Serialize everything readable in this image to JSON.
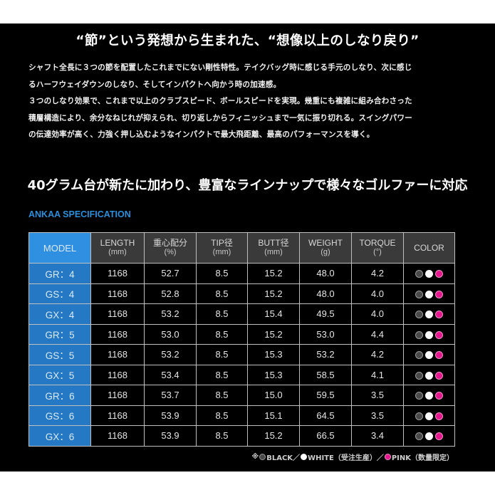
{
  "headline": "“節”という発想から生まれた、“想像以上のしなり戻り”",
  "intro_lines": [
    "シャフト全長に３つの節を配置したこれまでにない剛性特性。テイクバッグ時に感じる手元のしなり、次に感じ",
    "るハーフウェイダウンのしなり、そしてインパクトへ向かう時の加速感。",
    "３つのしなり効果で、これまで以上のクラブスピード、ボールスピードを実現。幾重にも複雑に組み合わさった",
    "積層構造により、余分なねじれが抑えられ、切り返しからフィニッシュまで一気に振り切れる。スイングパワー",
    "の伝達効率が高く、力強く押し込むようなインパクトで最大飛距離、最高のパフォーマンスを導く。"
  ],
  "subhead": "40グラム台が新たに加わり、豊富なラインナップで様々なゴルファーに対応",
  "spec_title": "ANKAA SPECIFICATION",
  "table": {
    "headers": [
      {
        "label": "MODEL",
        "unit": ""
      },
      {
        "label": "LENGTH",
        "unit": "(mm)"
      },
      {
        "label": "重心配分",
        "unit": "(%)"
      },
      {
        "label": "TIP径",
        "unit": "(mm)"
      },
      {
        "label": "BUTT径",
        "unit": "(mm)"
      },
      {
        "label": "WEIGHT",
        "unit": "(g)"
      },
      {
        "label": "TORQUE",
        "unit": "(°)"
      },
      {
        "label": "COLOR",
        "unit": ""
      }
    ],
    "rows": [
      {
        "model": "GR：4",
        "length": "1168",
        "balance": "52.7",
        "tip": "8.5",
        "butt": "15.2",
        "weight": "48.0",
        "torque": "4.2"
      },
      {
        "model": "GS：4",
        "length": "1168",
        "balance": "52.8",
        "tip": "8.5",
        "butt": "15.2",
        "weight": "48.0",
        "torque": "4.0"
      },
      {
        "model": "GX：4",
        "length": "1168",
        "balance": "53.2",
        "tip": "8.5",
        "butt": "15.4",
        "weight": "49.5",
        "torque": "4.0"
      },
      {
        "model": "GR：5",
        "length": "1168",
        "balance": "53.0",
        "tip": "8.5",
        "butt": "15.2",
        "weight": "53.0",
        "torque": "4.4"
      },
      {
        "model": "GS：5",
        "length": "1168",
        "balance": "53.2",
        "tip": "8.5",
        "butt": "15.3",
        "weight": "53.2",
        "torque": "4.2"
      },
      {
        "model": "GX：5",
        "length": "1168",
        "balance": "53.4",
        "tip": "8.5",
        "butt": "15.3",
        "weight": "58.5",
        "torque": "4.1"
      },
      {
        "model": "GR：6",
        "length": "1168",
        "balance": "53.7",
        "tip": "8.5",
        "butt": "15.0",
        "weight": "59.5",
        "torque": "3.5"
      },
      {
        "model": "GS：6",
        "length": "1168",
        "balance": "53.9",
        "tip": "8.5",
        "butt": "15.1",
        "weight": "64.5",
        "torque": "3.5"
      },
      {
        "model": "GX：6",
        "length": "1168",
        "balance": "53.9",
        "tip": "8.5",
        "butt": "15.2",
        "weight": "66.5",
        "torque": "3.4"
      }
    ],
    "colors": {
      "black": "#4a4a4a",
      "white": "#ffffff",
      "pink": "#e5178f"
    }
  },
  "legend": {
    "prefix": "※",
    "black": "BLACK／",
    "white": "WHITE（受注生産）／",
    "pink": "PINK（数量限定）"
  }
}
